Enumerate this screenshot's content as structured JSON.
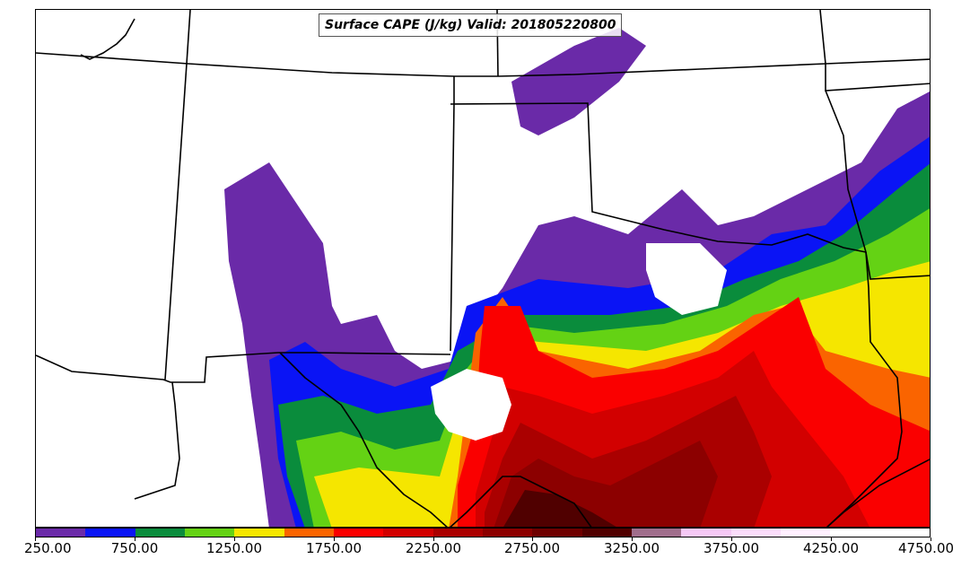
{
  "title": "Surface CAPE (J/kg) Valid: 201805220800",
  "colorbar": {
    "colors": [
      "#6a2aa8",
      "#0a14f5",
      "#0a8c3c",
      "#64d214",
      "#f5e600",
      "#fa6400",
      "#fa0000",
      "#d20000",
      "#aa0000",
      "#8c0000",
      "#6e0000",
      "#500000",
      "#a06e8c",
      "#f5c8f5",
      "#fadcfa",
      "#fff0ff",
      "#ffffff",
      "#ffffff"
    ],
    "tick_labels": [
      "250.00",
      "750.00",
      "1250.00",
      "1750.00",
      "2250.00",
      "2750.00",
      "3250.00",
      "3750.00",
      "4250.00",
      "4750.00"
    ]
  }
}
